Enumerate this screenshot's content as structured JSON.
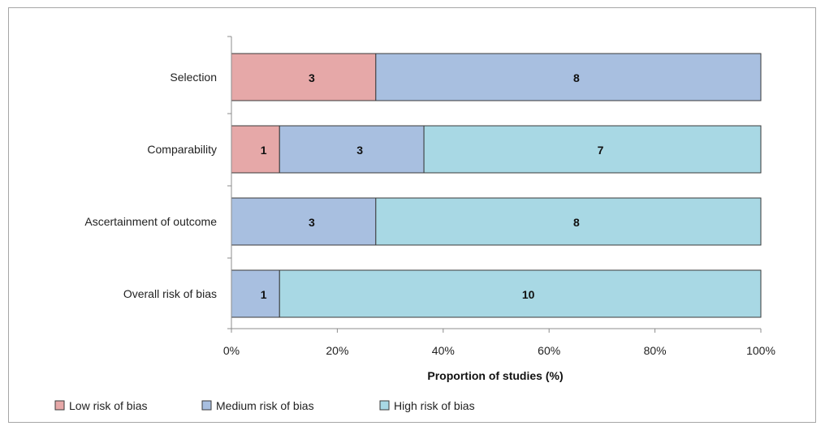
{
  "chart_data": {
    "type": "bar",
    "orientation": "horizontal",
    "stacked": "percent",
    "categories": [
      "Selection",
      "Comparability",
      "Ascertainment of outcome",
      "Overall risk of bias"
    ],
    "series": [
      {
        "name": "Low risk of bias",
        "color": "#e6a8a8",
        "values": [
          3,
          1,
          0,
          0
        ]
      },
      {
        "name": "Medium risk of bias",
        "color": "#a8bfe0",
        "values": [
          8,
          3,
          3,
          1
        ]
      },
      {
        "name": "High risk of bias",
        "color": "#a8d8e4",
        "values": [
          0,
          7,
          8,
          10
        ]
      }
    ],
    "xlabel": "Proportion of studies (%)",
    "ylabel": "",
    "xlim": [
      0,
      100
    ],
    "xticks": [
      "0%",
      "20%",
      "40%",
      "60%",
      "80%",
      "100%"
    ],
    "grid": false,
    "legend_position": "bottom-left"
  }
}
